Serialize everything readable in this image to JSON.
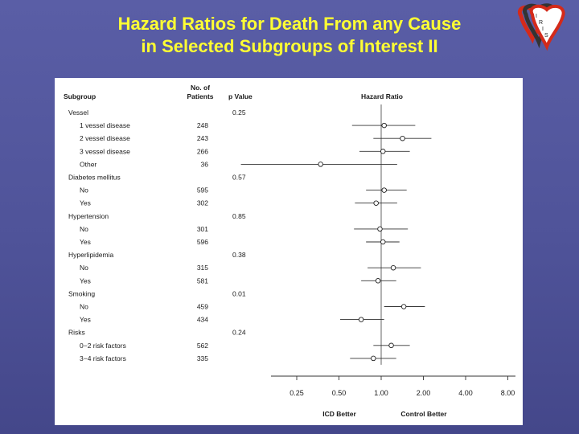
{
  "slide": {
    "title_line1": "Hazard Ratios for Death From any Cause",
    "title_line2": "in Selected Subgroups of Interest II",
    "logo_letters": [
      "I",
      "R",
      "I",
      "S"
    ],
    "colors": {
      "title": "#ffff33",
      "background": "#4f5399",
      "panel": "#ffffff",
      "logo_red": "#d42a1a",
      "logo_dark": "#333333"
    }
  },
  "chart_data": {
    "type": "forest",
    "headers": {
      "subgroup": "Subgroup",
      "patients_line1": "No. of",
      "patients_line2": "Patients",
      "pvalue": "p Value",
      "hazard": "Hazard Ratio"
    },
    "rows": [
      {
        "label": "Vessel",
        "group": true,
        "p": "0.25"
      },
      {
        "label": "1 vessel disease",
        "n": "248",
        "hr": 1.05,
        "lo": 0.62,
        "hi": 1.75
      },
      {
        "label": "2 vessel disease",
        "n": "243",
        "hr": 1.42,
        "lo": 0.88,
        "hi": 2.28
      },
      {
        "label": "3 vessel disease",
        "n": "266",
        "hr": 1.03,
        "lo": 0.7,
        "hi": 1.6
      },
      {
        "label": "Other",
        "n": "36",
        "hr": 0.37,
        "lo": 0.1,
        "hi": 1.3
      },
      {
        "label": "Diabetes mellitus",
        "group": true,
        "p": "0.57"
      },
      {
        "label": "No",
        "n": "595",
        "hr": 1.05,
        "lo": 0.78,
        "hi": 1.52
      },
      {
        "label": "Yes",
        "n": "302",
        "hr": 0.92,
        "lo": 0.65,
        "hi": 1.3
      },
      {
        "label": "Hypertension",
        "group": true,
        "p": "0.85"
      },
      {
        "label": "No",
        "n": "301",
        "hr": 0.98,
        "lo": 0.64,
        "hi": 1.55
      },
      {
        "label": "Yes",
        "n": "596",
        "hr": 1.03,
        "lo": 0.78,
        "hi": 1.35
      },
      {
        "label": "Hyperlipidemia",
        "group": true,
        "p": "0.38"
      },
      {
        "label": "No",
        "n": "315",
        "hr": 1.22,
        "lo": 0.8,
        "hi": 1.92
      },
      {
        "label": "Yes",
        "n": "581",
        "hr": 0.95,
        "lo": 0.72,
        "hi": 1.28
      },
      {
        "label": "Smoking",
        "group": true,
        "p": "0.01"
      },
      {
        "label": "No",
        "n": "459",
        "hr": 1.45,
        "lo": 1.05,
        "hi": 2.05
      },
      {
        "label": "Yes",
        "n": "434",
        "hr": 0.72,
        "lo": 0.51,
        "hi": 1.05
      },
      {
        "label": "Risks",
        "group": true,
        "p": "0.24"
      },
      {
        "label": "0−2 risk factors",
        "n": "562",
        "hr": 1.18,
        "lo": 0.88,
        "hi": 1.6
      },
      {
        "label": "3−4 risk factors",
        "n": "335",
        "hr": 0.88,
        "lo": 0.6,
        "hi": 1.28
      }
    ],
    "x_ticks": [
      0.25,
      0.5,
      1.0,
      2.0,
      4.0,
      8.0
    ],
    "x_tick_labels": [
      "0.25",
      "0.50",
      "1.00",
      "2.00",
      "4.00",
      "8.00"
    ],
    "x_scale": "log2",
    "xlim": [
      0.125,
      10
    ],
    "reference_line": 1.0,
    "footer_left": "ICD Better",
    "footer_right": "Control Better"
  }
}
